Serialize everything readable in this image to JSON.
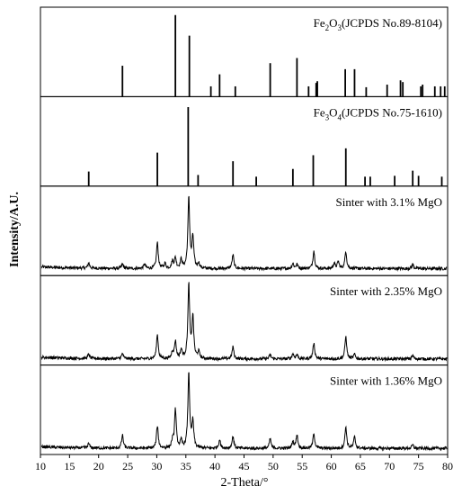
{
  "chart_data": {
    "type": "line",
    "xlabel": "2-Theta/°",
    "ylabel": "Intensity/A.U.",
    "xlim": [
      10,
      80
    ],
    "xticks": [
      10,
      15,
      20,
      25,
      30,
      35,
      40,
      45,
      50,
      55,
      60,
      65,
      70,
      75,
      80
    ],
    "panels": [
      {
        "label_main": "Fe",
        "label_sub1": "2",
        "label_mid": "O",
        "label_sub2": "3",
        "label_tail": "(JCPDS No.89-8104)",
        "kind": "reference",
        "peaks": [
          {
            "x": 24.1,
            "h": 0.36
          },
          {
            "x": 33.2,
            "h": 0.95
          },
          {
            "x": 35.6,
            "h": 0.71
          },
          {
            "x": 39.3,
            "h": 0.12
          },
          {
            "x": 40.8,
            "h": 0.26
          },
          {
            "x": 43.5,
            "h": 0.12
          },
          {
            "x": 49.5,
            "h": 0.39
          },
          {
            "x": 54.1,
            "h": 0.45
          },
          {
            "x": 56.1,
            "h": 0.12
          },
          {
            "x": 57.4,
            "h": 0.16
          },
          {
            "x": 57.6,
            "h": 0.18
          },
          {
            "x": 62.4,
            "h": 0.32
          },
          {
            "x": 64.0,
            "h": 0.32
          },
          {
            "x": 66.0,
            "h": 0.11
          },
          {
            "x": 69.6,
            "h": 0.14
          },
          {
            "x": 71.9,
            "h": 0.19
          },
          {
            "x": 72.3,
            "h": 0.17
          },
          {
            "x": 75.4,
            "h": 0.12
          },
          {
            "x": 75.7,
            "h": 0.14
          },
          {
            "x": 77.8,
            "h": 0.12
          },
          {
            "x": 78.8,
            "h": 0.12
          },
          {
            "x": 79.5,
            "h": 0.12
          }
        ]
      },
      {
        "label_main": "Fe",
        "label_sub1": "3",
        "label_mid": "O",
        "label_sub2": "4",
        "label_tail": "(JCPDS No.75-1610)",
        "kind": "reference",
        "peaks": [
          {
            "x": 18.3,
            "h": 0.17
          },
          {
            "x": 30.1,
            "h": 0.39
          },
          {
            "x": 35.4,
            "h": 0.92
          },
          {
            "x": 37.1,
            "h": 0.13
          },
          {
            "x": 43.1,
            "h": 0.29
          },
          {
            "x": 47.1,
            "h": 0.11
          },
          {
            "x": 53.4,
            "h": 0.2
          },
          {
            "x": 56.9,
            "h": 0.36
          },
          {
            "x": 62.5,
            "h": 0.44
          },
          {
            "x": 65.8,
            "h": 0.11
          },
          {
            "x": 66.7,
            "h": 0.11
          },
          {
            "x": 70.9,
            "h": 0.12
          },
          {
            "x": 74.0,
            "h": 0.18
          },
          {
            "x": 75.0,
            "h": 0.12
          },
          {
            "x": 79.0,
            "h": 0.11
          }
        ]
      },
      {
        "label_main": "Sinter with 3.1% MgO",
        "kind": "pattern",
        "baseline": 0.05,
        "peaks": [
          {
            "x": 18.3,
            "h": 0.06
          },
          {
            "x": 24.1,
            "h": 0.05
          },
          {
            "x": 27.9,
            "h": 0.05
          },
          {
            "x": 30.1,
            "h": 0.3
          },
          {
            "x": 31.4,
            "h": 0.06
          },
          {
            "x": 32.7,
            "h": 0.08
          },
          {
            "x": 33.2,
            "h": 0.12
          },
          {
            "x": 34.2,
            "h": 0.1
          },
          {
            "x": 35.5,
            "h": 0.83
          },
          {
            "x": 36.2,
            "h": 0.36
          },
          {
            "x": 37.2,
            "h": 0.06
          },
          {
            "x": 43.1,
            "h": 0.16
          },
          {
            "x": 53.4,
            "h": 0.06
          },
          {
            "x": 54.1,
            "h": 0.05
          },
          {
            "x": 57.0,
            "h": 0.21
          },
          {
            "x": 60.5,
            "h": 0.06
          },
          {
            "x": 61.2,
            "h": 0.08
          },
          {
            "x": 62.5,
            "h": 0.2
          },
          {
            "x": 74.0,
            "h": 0.05
          }
        ]
      },
      {
        "label_main": "Sinter with 2.35% MgO",
        "kind": "pattern",
        "baseline": 0.04,
        "peaks": [
          {
            "x": 18.3,
            "h": 0.05
          },
          {
            "x": 24.1,
            "h": 0.06
          },
          {
            "x": 30.1,
            "h": 0.28
          },
          {
            "x": 32.7,
            "h": 0.08
          },
          {
            "x": 33.2,
            "h": 0.2
          },
          {
            "x": 34.2,
            "h": 0.1
          },
          {
            "x": 35.5,
            "h": 0.86
          },
          {
            "x": 36.2,
            "h": 0.48
          },
          {
            "x": 37.2,
            "h": 0.08
          },
          {
            "x": 43.1,
            "h": 0.14
          },
          {
            "x": 49.5,
            "h": 0.05
          },
          {
            "x": 53.4,
            "h": 0.06
          },
          {
            "x": 54.1,
            "h": 0.05
          },
          {
            "x": 57.0,
            "h": 0.19
          },
          {
            "x": 62.5,
            "h": 0.26
          },
          {
            "x": 64.0,
            "h": 0.05
          },
          {
            "x": 74.0,
            "h": 0.04
          }
        ]
      },
      {
        "label_main": "Sinter with 1.36% MgO",
        "kind": "pattern",
        "baseline": 0.04,
        "peaks": [
          {
            "x": 18.3,
            "h": 0.05
          },
          {
            "x": 24.1,
            "h": 0.15
          },
          {
            "x": 30.1,
            "h": 0.26
          },
          {
            "x": 32.7,
            "h": 0.08
          },
          {
            "x": 33.2,
            "h": 0.45
          },
          {
            "x": 34.2,
            "h": 0.08
          },
          {
            "x": 35.5,
            "h": 0.88
          },
          {
            "x": 36.2,
            "h": 0.3
          },
          {
            "x": 40.8,
            "h": 0.1
          },
          {
            "x": 43.1,
            "h": 0.14
          },
          {
            "x": 49.5,
            "h": 0.11
          },
          {
            "x": 53.4,
            "h": 0.08
          },
          {
            "x": 54.1,
            "h": 0.16
          },
          {
            "x": 57.0,
            "h": 0.18
          },
          {
            "x": 62.5,
            "h": 0.25
          },
          {
            "x": 64.0,
            "h": 0.13
          },
          {
            "x": 74.0,
            "h": 0.04
          }
        ]
      }
    ]
  }
}
